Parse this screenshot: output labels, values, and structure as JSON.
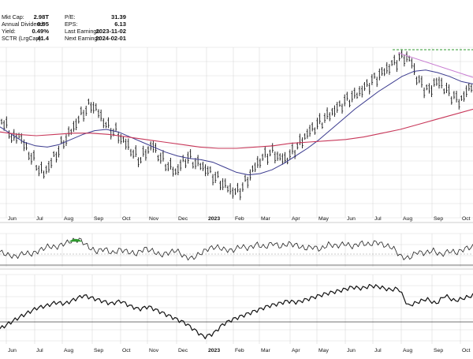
{
  "stats": {
    "left": [
      {
        "label": "Mkt Cap:",
        "value": "2.98T"
      },
      {
        "label": "Annual Dividend:",
        "value": "0.95"
      },
      {
        "label": "Yield:",
        "value": "0.49%"
      },
      {
        "label": "SCTR (LrgCap):",
        "value": "41.4"
      }
    ],
    "right": [
      {
        "label": "P/E:",
        "value": "31.39"
      },
      {
        "label": "EPS:",
        "value": "6.13"
      },
      {
        "label": "Last Earnings:",
        "value": "2023-11-02"
      },
      {
        "label": "Next Earnings:",
        "value": "2024-02-01"
      }
    ]
  },
  "colors": {
    "price": "#111111",
    "ma_fast": "#3b3b8f",
    "ma_slow": "#c8385a",
    "trendline": "#c77ad1",
    "resistance": "#2f9a2f",
    "grid": "#d9d9d9",
    "rsi_over": "#2f9a2f"
  },
  "chart_data": [
    {
      "type": "line",
      "panel": "price",
      "x_tick_labels": [
        "Jun",
        "Jul",
        "Aug",
        "Sep",
        "Oct",
        "Nov",
        "Dec",
        "2023",
        "Feb",
        "Mar",
        "Apr",
        "May",
        "Jun",
        "Jul",
        "Aug",
        "Sep",
        "Oct"
      ],
      "x_tick_bold": [
        "2023"
      ],
      "series": [
        {
          "role": "price",
          "style": "ohlc",
          "values": [
            0.78,
            0.7,
            0.62,
            0.66,
            0.55,
            0.48,
            0.4,
            0.35,
            0.42,
            0.5,
            0.58,
            0.65,
            0.72,
            0.8,
            0.86,
            0.9,
            0.84,
            0.76,
            0.7,
            0.68,
            0.62,
            0.57,
            0.5,
            0.46,
            0.52,
            0.58,
            0.5,
            0.44,
            0.4,
            0.36,
            0.44,
            0.48,
            0.44,
            0.42,
            0.38,
            0.34,
            0.3,
            0.26,
            0.22,
            0.2,
            0.24,
            0.32,
            0.4,
            0.46,
            0.5,
            0.52,
            0.48,
            0.46,
            0.5,
            0.56,
            0.62,
            0.68,
            0.72,
            0.76,
            0.8,
            0.84,
            0.88,
            0.92,
            0.95,
            0.98,
            1.02,
            1.06,
            1.1,
            1.14,
            1.18,
            1.22,
            1.26,
            1.28,
            1.24,
            1.1,
            1.04,
            1.0,
            1.08,
            1.06,
            1.0,
            0.96,
            0.92,
            0.98,
            1.06
          ]
        },
        {
          "role": "ma_fast",
          "values": [
            0.72,
            0.66,
            0.6,
            0.57,
            0.56,
            0.58,
            0.62,
            0.66,
            0.69,
            0.7,
            0.68,
            0.64,
            0.6,
            0.56,
            0.52,
            0.49,
            0.47,
            0.46,
            0.44,
            0.4,
            0.36,
            0.34,
            0.35,
            0.38,
            0.43,
            0.49,
            0.55,
            0.62,
            0.7,
            0.78,
            0.86,
            0.93,
            1.0,
            1.06,
            1.12,
            1.16,
            1.17,
            1.15,
            1.12,
            1.08,
            1.06
          ]
        },
        {
          "role": "ma_slow",
          "values": [
            0.68,
            0.66,
            0.65,
            0.66,
            0.67,
            0.67,
            0.66,
            0.64,
            0.62,
            0.6,
            0.58,
            0.56,
            0.55,
            0.55,
            0.56,
            0.57,
            0.59,
            0.6,
            0.61,
            0.62,
            0.64,
            0.67,
            0.7,
            0.74,
            0.78,
            0.82,
            0.86
          ]
        }
      ]
    },
    {
      "type": "line",
      "panel": "rsi",
      "series": [
        {
          "role": "indicator",
          "values": [
            0.45,
            0.35,
            0.3,
            0.42,
            0.38,
            0.5,
            0.62,
            0.58,
            0.7,
            0.78,
            0.82,
            0.6,
            0.45,
            0.55,
            0.4,
            0.52,
            0.45,
            0.38,
            0.55,
            0.48,
            0.35,
            0.42,
            0.5,
            0.3,
            0.25,
            0.4,
            0.55,
            0.6,
            0.52,
            0.48,
            0.62,
            0.55,
            0.68,
            0.58,
            0.72,
            0.6,
            0.7,
            0.65,
            0.55,
            0.6,
            0.52,
            0.68,
            0.62,
            0.7,
            0.6,
            0.72,
            0.66,
            0.75,
            0.64,
            0.58,
            0.3,
            0.25,
            0.45,
            0.4,
            0.5,
            0.35,
            0.48,
            0.42,
            0.55,
            0.6
          ]
        }
      ]
    },
    {
      "type": "line",
      "panel": "breadth",
      "series": [
        {
          "role": "indicator",
          "values": [
            0.22,
            0.3,
            0.38,
            0.45,
            0.52,
            0.55,
            0.6,
            0.58,
            0.64,
            0.7,
            0.66,
            0.62,
            0.58,
            0.62,
            0.55,
            0.5,
            0.54,
            0.48,
            0.42,
            0.36,
            0.3,
            0.2,
            0.1,
            0.15,
            0.28,
            0.35,
            0.4,
            0.45,
            0.5,
            0.55,
            0.58,
            0.62,
            0.6,
            0.64,
            0.68,
            0.72,
            0.75,
            0.78,
            0.82,
            0.8,
            0.84,
            0.82,
            0.78,
            0.8,
            0.55,
            0.6,
            0.65,
            0.58,
            0.7,
            0.62,
            0.66,
            0.7
          ]
        }
      ]
    }
  ]
}
